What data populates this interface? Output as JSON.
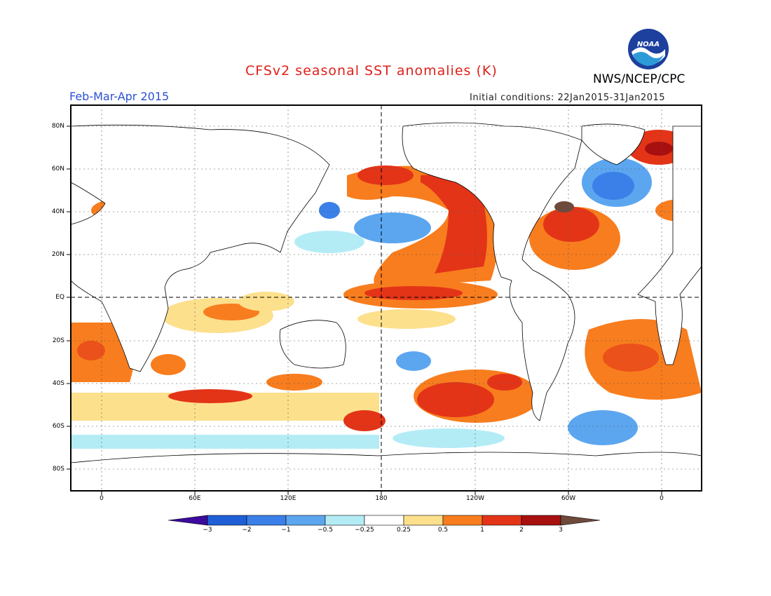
{
  "header": {
    "title": "CFSv2 seasonal SST anomalies (K)",
    "organization": "NWS/NCEP/CPC",
    "period": "Feb-Mar-Apr 2015",
    "initial_conditions": "Initial conditions: 22Jan2015-31Jan2015",
    "logo_text": "NOAA"
  },
  "map": {
    "lat_labels": [
      "80N",
      "60N",
      "40N",
      "20N",
      "EQ",
      "20S",
      "40S",
      "60S",
      "80S"
    ],
    "lon_labels": [
      "0",
      "60E",
      "120E",
      "180",
      "120W",
      "60W",
      "0"
    ]
  },
  "colorbar": {
    "labels": [
      "-3",
      "-2",
      "-1",
      "-0.5",
      "-0.25",
      "0.25",
      "0.5",
      "1",
      "2",
      "3"
    ],
    "colors": [
      "#3c0a9c",
      "#1f5fd6",
      "#3a80e8",
      "#5ca6f0",
      "#b4ecf6",
      "#ffffff",
      "#fde08c",
      "#f87d1e",
      "#e33418",
      "#a81010",
      "#6e4a3c"
    ]
  },
  "colors": {
    "land": "#ffffff",
    "neutral_ocean": "#ffffff",
    "title": "#e0201a",
    "period": "#2a4fd8"
  }
}
